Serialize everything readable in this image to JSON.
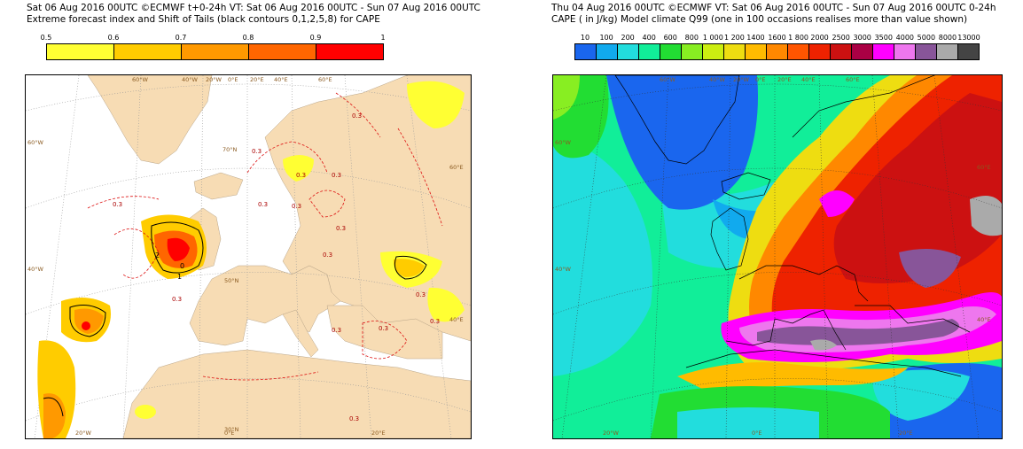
{
  "left": {
    "title_line1": "Sat 06 Aug 2016 00UTC ©ECMWF t+0-24h  VT: Sat 06 Aug 2016 00UTC - Sun 07 Aug 2016 00UTC",
    "title_line2": "Extreme forecast index and Shift of Tails (black contours 0,1,2,5,8) for CAPE",
    "colorbar": {
      "labels": [
        "0.5",
        "0.6",
        "0.7",
        "0.8",
        "0.9",
        "1"
      ],
      "colors": [
        "#ffff33",
        "#ffcc00",
        "#ff9900",
        "#ff6600",
        "#ff0000"
      ]
    },
    "map_labels": {
      "top": [
        "60°W",
        "40°W",
        "20°W",
        "0°E",
        "20°E",
        "40°E",
        "60°E"
      ],
      "left": [
        "60°W",
        "40°W"
      ],
      "right": [
        "60°E",
        "40°E"
      ],
      "bottom": [
        "20°W",
        "0°E",
        "20°E"
      ],
      "lat": [
        "70°N",
        "50°N",
        "30°N"
      ],
      "contour_values": [
        "0.3",
        "0.3",
        "0.3",
        "0.3",
        "0.3",
        "0.3",
        "0.3",
        "0.3",
        "0.3",
        "0.3",
        "0.3",
        "0.3",
        "0.3",
        "0.3",
        "0.3"
      ],
      "sot_values": [
        "2",
        "0",
        "1"
      ]
    },
    "colors": {
      "land": "#f7dcb4",
      "sea": "#ffffff",
      "contour_red": "#dd1111",
      "contour_black": "#000000"
    }
  },
  "right": {
    "title_line1": "Thu 04 Aug 2016 00UTC ©ECMWF VT: Sat 06 Aug 2016 00UTC - Sun 07 Aug 2016 00UTC   0-24h",
    "title_line2": "CAPE ( in J/kg)   Model climate Q99 (one in 100 occasions realises more than value shown)",
    "colorbar": {
      "labels": [
        "10",
        "100",
        "200",
        "400",
        "600",
        "800",
        "1 000",
        "1 200",
        "1400",
        "1600",
        "1 800",
        "2000",
        "2500",
        "3000",
        "3500",
        "4000",
        "5000",
        "8000",
        "13000"
      ],
      "colors": [
        "#1a66ee",
        "#11aaee",
        "#22dddd",
        "#11ee99",
        "#22dd33",
        "#88ee22",
        "#ccee11",
        "#eedd11",
        "#ffbb00",
        "#ff8800",
        "#ff5500",
        "#ee2200",
        "#cc1111",
        "#aa0044",
        "#ff00ff",
        "#ee77ee",
        "#885599",
        "#aaaaaa",
        "#444444"
      ]
    },
    "map_labels": {
      "top": [
        "60°W",
        "40°W",
        "20°W",
        "0°E",
        "20°E",
        "40°E",
        "60°E"
      ],
      "left": [
        "60°W",
        "40°W"
      ],
      "right": [
        "60°E",
        "40°E"
      ],
      "bottom": [
        "20°W",
        "0°E",
        "20°E"
      ]
    }
  }
}
